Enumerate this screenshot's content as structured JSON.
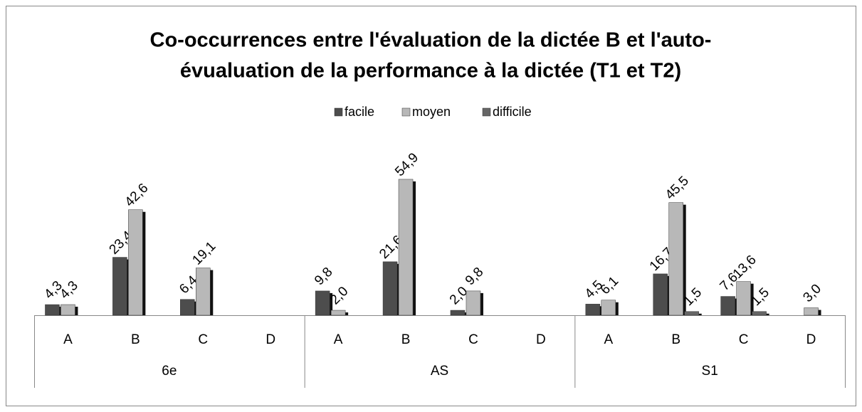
{
  "chart_data": {
    "type": "bar",
    "title": [
      "Co-occurrences entre l'évaluation de la dictée B et l'auto-",
      "évualuation de la performance à la dictée (T1 et T2)"
    ],
    "groups": [
      {
        "name": "6e",
        "categories": [
          "A",
          "B",
          "C",
          "D"
        ]
      },
      {
        "name": "AS",
        "categories": [
          "A",
          "B",
          "C",
          "D"
        ]
      },
      {
        "name": "S1",
        "categories": [
          "A",
          "B",
          "C",
          "D"
        ]
      }
    ],
    "series": [
      {
        "name": "facile",
        "color": "#4d4d4d",
        "values": [
          4.3,
          23.4,
          6.4,
          null,
          9.8,
          21.6,
          2.0,
          null,
          4.5,
          16.7,
          7.6,
          null
        ],
        "value_labels": [
          "4,3",
          "23,4",
          "6,4",
          null,
          "9,8",
          "21,6",
          "2,0",
          null,
          "4,5",
          "16,7",
          "7,6",
          null
        ]
      },
      {
        "name": "moyen",
        "color": "#b8b8b8",
        "values": [
          4.3,
          42.6,
          19.1,
          null,
          2.0,
          54.9,
          9.8,
          null,
          6.1,
          45.5,
          13.6,
          3.0
        ],
        "value_labels": [
          "4,3",
          "42,6",
          "19,1",
          null,
          "2,0",
          "54,9",
          "9,8",
          null,
          "6,1",
          "45,5",
          "13,6",
          "3,0"
        ]
      },
      {
        "name": "difficile",
        "color": "#666666",
        "values": [
          null,
          null,
          null,
          null,
          null,
          null,
          null,
          null,
          null,
          1.5,
          1.5,
          null
        ],
        "value_labels": [
          null,
          null,
          null,
          null,
          null,
          null,
          null,
          null,
          null,
          "1,5",
          "1,5",
          null
        ]
      }
    ],
    "legend": "top"
  }
}
